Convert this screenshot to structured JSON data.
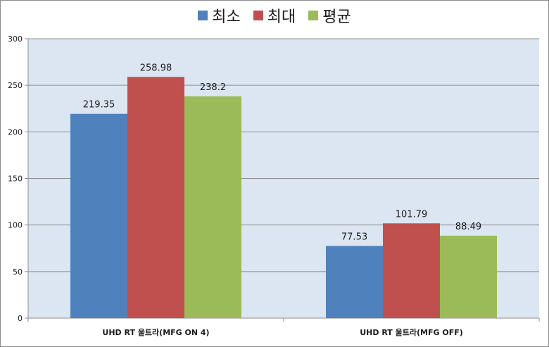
{
  "chart_data": {
    "type": "bar",
    "title": "",
    "xlabel": "",
    "ylabel": "",
    "categories": [
      "UHD RT 울트라(MFG ON 4)",
      "UHD RT 울트라(MFG OFF)"
    ],
    "series": [
      {
        "name": "최소",
        "color": "#4f81bd",
        "values": [
          219.35,
          77.53
        ],
        "labels": [
          "219.35",
          "77.53"
        ]
      },
      {
        "name": "최대",
        "color": "#c0504d",
        "values": [
          258.98,
          101.79
        ],
        "labels": [
          "258.98",
          "101.79"
        ]
      },
      {
        "name": "평균",
        "color": "#9bbb59",
        "values": [
          238.2,
          88.49
        ],
        "labels": [
          "238.2",
          "88.49"
        ]
      }
    ],
    "ylim": [
      0,
      300
    ],
    "yticks": [
      0,
      50,
      100,
      150,
      200,
      250,
      300
    ],
    "grid": true,
    "legend_position": "top",
    "plot_background": "#dce6f2"
  }
}
